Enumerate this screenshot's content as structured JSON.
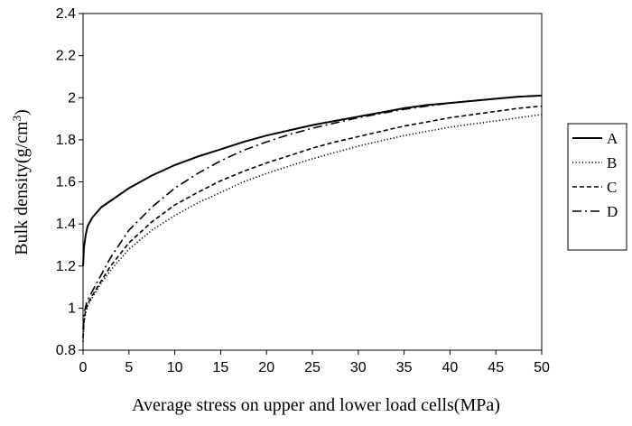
{
  "chart_data": {
    "type": "line",
    "title": "",
    "xlabel": "Average stress on upper and lower load cells(MPa)",
    "ylabel_main": "Bulk density(g/cm",
    "ylabel_sup": "3",
    "ylabel_close": ")",
    "xlim": [
      0,
      50
    ],
    "ylim": [
      0.8,
      2.4
    ],
    "x_ticks": [
      0,
      5,
      10,
      15,
      20,
      25,
      30,
      35,
      40,
      45,
      50
    ],
    "x_tick_labels": [
      "0",
      "5",
      "10",
      "15",
      "20",
      "25",
      "30",
      "35",
      "40",
      "45",
      "50"
    ],
    "y_ticks": [
      0.8,
      1.0,
      1.2,
      1.4,
      1.6,
      1.8,
      2.0,
      2.2,
      2.4
    ],
    "y_tick_labels": [
      "0.8",
      "1",
      "1.2",
      "1.4",
      "1.6",
      "1.8",
      "2",
      "2.2",
      "2.4"
    ],
    "grid": false,
    "legend_position": "right",
    "series": [
      {
        "name": "A",
        "style": "solid",
        "x": [
          0,
          0.1,
          0.3,
          0.5,
          1,
          2,
          3,
          5,
          7.5,
          10,
          12.5,
          15,
          17.5,
          20,
          22.5,
          25,
          27.5,
          30,
          32.5,
          35,
          37.5,
          40,
          42.5,
          45,
          47.5,
          50
        ],
        "y": [
          1.2,
          1.29,
          1.35,
          1.39,
          1.43,
          1.48,
          1.51,
          1.57,
          1.63,
          1.68,
          1.72,
          1.755,
          1.79,
          1.82,
          1.845,
          1.87,
          1.89,
          1.91,
          1.93,
          1.95,
          1.965,
          1.975,
          1.985,
          1.995,
          2.005,
          2.01
        ]
      },
      {
        "name": "B",
        "style": "dotted",
        "x": [
          0,
          0.1,
          0.3,
          0.5,
          1,
          2,
          3,
          5,
          7.5,
          10,
          12.5,
          15,
          17.5,
          20,
          22.5,
          25,
          27.5,
          30,
          32.5,
          35,
          37.5,
          40,
          42.5,
          45,
          47.5,
          50
        ],
        "y": [
          0.84,
          0.93,
          0.98,
          1.01,
          1.05,
          1.12,
          1.18,
          1.28,
          1.37,
          1.44,
          1.5,
          1.55,
          1.6,
          1.64,
          1.675,
          1.71,
          1.74,
          1.77,
          1.795,
          1.82,
          1.84,
          1.86,
          1.875,
          1.89,
          1.905,
          1.92
        ]
      },
      {
        "name": "C",
        "style": "dashed",
        "x": [
          0,
          0.1,
          0.3,
          0.5,
          1,
          2,
          3,
          5,
          7.5,
          10,
          12.5,
          15,
          17.5,
          20,
          22.5,
          25,
          27.5,
          30,
          32.5,
          35,
          37.5,
          40,
          42.5,
          45,
          47.5,
          50
        ],
        "y": [
          0.86,
          0.94,
          0.99,
          1.02,
          1.06,
          1.13,
          1.2,
          1.31,
          1.41,
          1.49,
          1.55,
          1.605,
          1.65,
          1.69,
          1.725,
          1.76,
          1.79,
          1.815,
          1.84,
          1.865,
          1.885,
          1.905,
          1.92,
          1.935,
          1.95,
          1.96
        ]
      },
      {
        "name": "D",
        "style": "dashdot",
        "x": [
          0,
          0.1,
          0.3,
          0.5,
          1,
          2,
          3,
          5,
          7.5,
          10,
          12.5,
          15,
          17.5,
          20,
          22.5,
          25,
          27.5,
          30,
          32.5,
          35,
          37.5,
          40,
          42.5,
          45,
          47.5,
          50
        ],
        "y": [
          0.9,
          0.97,
          1.01,
          1.04,
          1.08,
          1.16,
          1.24,
          1.37,
          1.48,
          1.57,
          1.64,
          1.7,
          1.75,
          1.79,
          1.825,
          1.855,
          1.88,
          1.905,
          1.925,
          1.945,
          1.96,
          1.975,
          1.985,
          1.995,
          2.005,
          2.01
        ]
      }
    ]
  }
}
